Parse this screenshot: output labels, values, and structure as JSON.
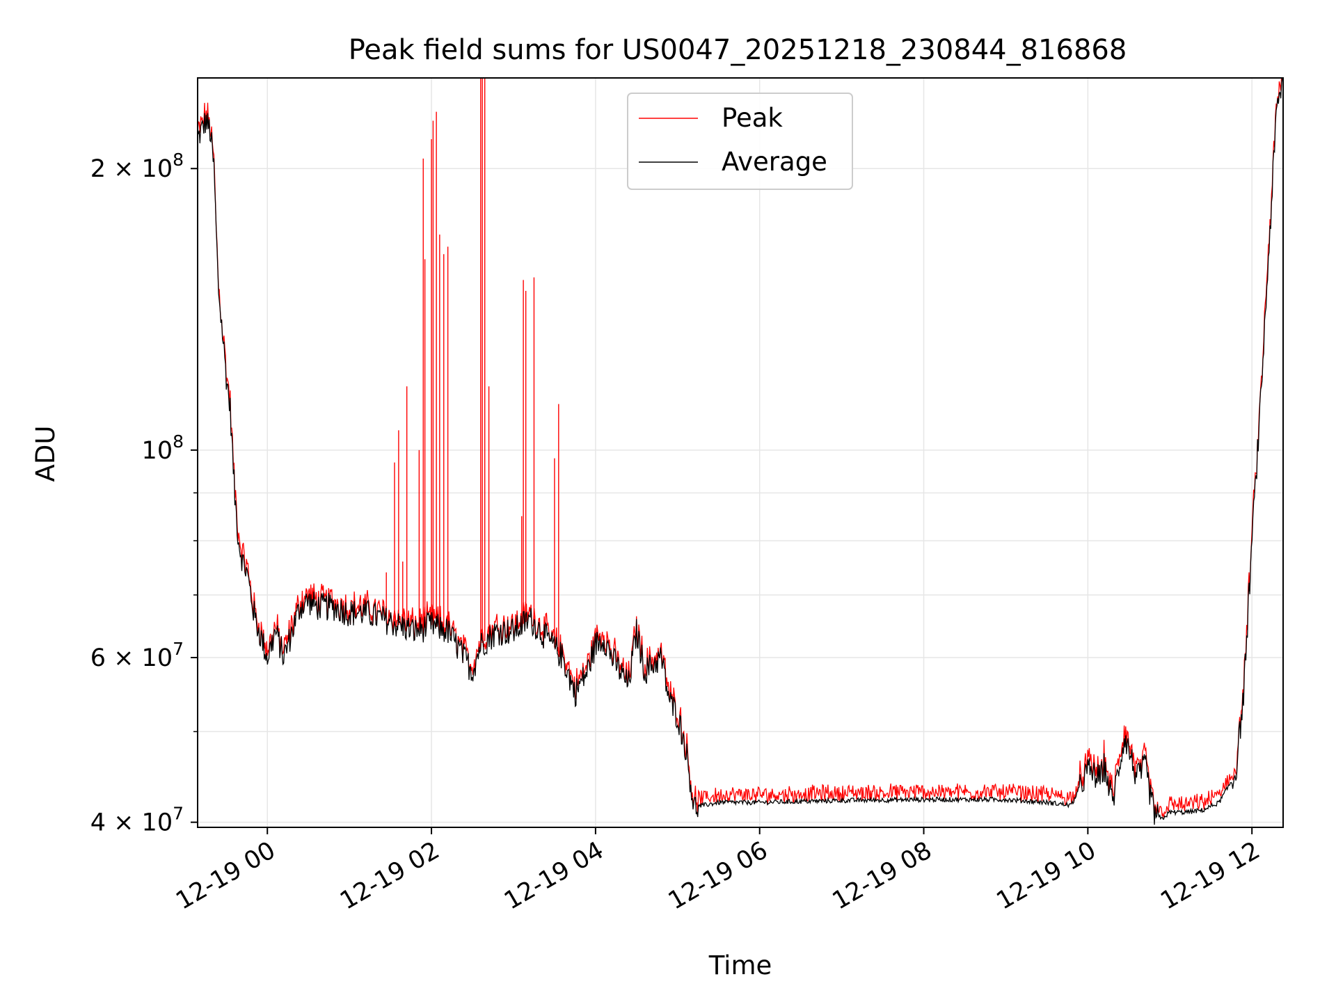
{
  "chart_data": {
    "type": "line",
    "title": "Peak field sums for US0047_20251218_230844_816868",
    "xlabel": "Time",
    "ylabel": "ADU",
    "yscale": "log",
    "xlim_hours": [
      -0.85,
      12.38
    ],
    "ylim": [
      39500000,
      250000000
    ],
    "x_unit": "hours relative to 2025-12-19 00:00",
    "x_ticks": [
      {
        "value": 0,
        "label": "12-19 00"
      },
      {
        "value": 2,
        "label": "12-19 02"
      },
      {
        "value": 4,
        "label": "12-19 04"
      },
      {
        "value": 6,
        "label": "12-19 06"
      },
      {
        "value": 8,
        "label": "12-19 08"
      },
      {
        "value": 10,
        "label": "12-19 10"
      },
      {
        "value": 12,
        "label": "12-19 12"
      }
    ],
    "y_major_ticks": [
      {
        "value": 40000000,
        "mantissa": "4",
        "exp": "7"
      },
      {
        "value": 60000000,
        "mantissa": "6",
        "exp": "7"
      },
      {
        "value": 100000000,
        "mantissa": "",
        "exp": "8"
      },
      {
        "value": 200000000,
        "mantissa": "2",
        "exp": "8"
      }
    ],
    "y_minor_ticks": [
      50000000,
      70000000,
      80000000,
      90000000
    ],
    "grid": true,
    "legend_position": "top-center",
    "colors": {
      "peak": "#ff0000",
      "average": "#000000",
      "grid": "#e6e6e6"
    },
    "series": [
      {
        "name": "Peak",
        "color": "#ff0000",
        "baseline_from": "Average",
        "spikes": [
          [
            1.45,
            74000000
          ],
          [
            1.55,
            97000000
          ],
          [
            1.6,
            105000000
          ],
          [
            1.65,
            76000000
          ],
          [
            1.7,
            117000000
          ],
          [
            1.85,
            100000000
          ],
          [
            1.9,
            205000000
          ],
          [
            1.92,
            160000000
          ],
          [
            2.0,
            215000000
          ],
          [
            2.02,
            225000000
          ],
          [
            2.06,
            230000000
          ],
          [
            2.1,
            170000000
          ],
          [
            2.15,
            162000000
          ],
          [
            2.2,
            165000000
          ],
          [
            2.6,
            250000000
          ],
          [
            2.62,
            250000000
          ],
          [
            2.65,
            250000000
          ],
          [
            2.7,
            117000000
          ],
          [
            3.1,
            85000000
          ],
          [
            3.12,
            152000000
          ],
          [
            3.15,
            148000000
          ],
          [
            3.25,
            153000000
          ],
          [
            3.5,
            98000000
          ],
          [
            3.55,
            112000000
          ]
        ],
        "noise_above_average": [
          [
            5.3,
            2000000
          ],
          [
            9.8,
            2200000
          ],
          [
            10.0,
            3000000
          ],
          [
            10.4,
            2000000
          ],
          [
            11.0,
            1000000
          ],
          [
            11.6,
            2000000
          ]
        ]
      },
      {
        "name": "Average",
        "color": "#000000",
        "x": [
          -0.85,
          -0.75,
          -0.7,
          -0.65,
          -0.6,
          -0.5,
          -0.45,
          -0.4,
          -0.35,
          -0.3,
          -0.25,
          -0.2,
          -0.15,
          -0.1,
          0.0,
          0.1,
          0.2,
          0.3,
          0.4,
          0.5,
          0.6,
          0.8,
          1.0,
          1.2,
          1.4,
          1.6,
          1.8,
          2.0,
          2.2,
          2.4,
          2.5,
          2.6,
          2.8,
          3.0,
          3.2,
          3.4,
          3.6,
          3.75,
          3.9,
          4.0,
          4.1,
          4.2,
          4.3,
          4.4,
          4.5,
          4.6,
          4.7,
          4.8,
          4.9,
          5.0,
          5.1,
          5.2,
          5.5,
          6.0,
          7.0,
          8.0,
          9.0,
          9.5,
          9.8,
          10.0,
          10.15,
          10.2,
          10.3,
          10.45,
          10.6,
          10.7,
          10.8,
          10.9,
          11.0,
          11.2,
          11.4,
          11.6,
          11.8,
          11.9,
          12.0,
          12.1,
          12.2,
          12.3,
          12.38
        ],
        "y": [
          215000000,
          225000000,
          220000000,
          200000000,
          150000000,
          120000000,
          110000000,
          90000000,
          80000000,
          76000000,
          74000000,
          70000000,
          66000000,
          64000000,
          60000000,
          64000000,
          60000000,
          64000000,
          68000000,
          69000000,
          68000000,
          68000000,
          67000000,
          67000000,
          66000000,
          65000000,
          64000000,
          65000000,
          64000000,
          60000000,
          58000000,
          62000000,
          64000000,
          64000000,
          66000000,
          63000000,
          60000000,
          55000000,
          58000000,
          62000000,
          63000000,
          60000000,
          58000000,
          56000000,
          64000000,
          58000000,
          59000000,
          60000000,
          54000000,
          52000000,
          48000000,
          41500000,
          42000000,
          42000000,
          42200000,
          42300000,
          42300000,
          42000000,
          41700000,
          45500000,
          44500000,
          46000000,
          42000000,
          49500000,
          44500000,
          46000000,
          41000000,
          40300000,
          41000000,
          41000000,
          41200000,
          42000000,
          45000000,
          55000000,
          80000000,
          110000000,
          160000000,
          230000000,
          250000000
        ]
      }
    ],
    "legend": [
      {
        "label": "Peak",
        "color": "#ff0000"
      },
      {
        "label": "Average",
        "color": "#000000"
      }
    ]
  }
}
